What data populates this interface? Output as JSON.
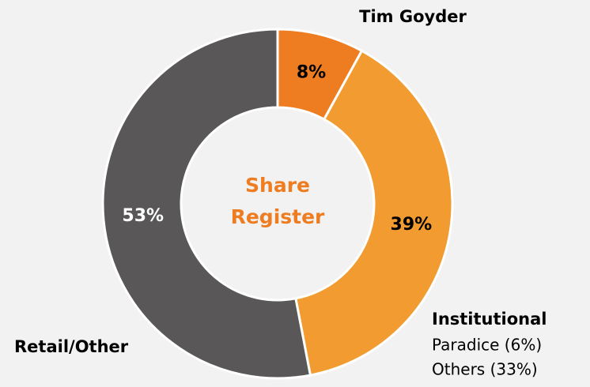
{
  "chart_data": {
    "type": "donut",
    "categories": [
      "Tim Goyder",
      "Institutional",
      "Retail/Other"
    ],
    "values": [
      8,
      39,
      53
    ],
    "value_labels": [
      "8%",
      "39%",
      "53%"
    ],
    "colors": [
      "#ee7d22",
      "#f29b30",
      "#595757"
    ],
    "label_colors": [
      "#000000",
      "#000000",
      "#ffffff"
    ],
    "center_text": [
      "Share",
      "Register"
    ],
    "annotations": [
      "Paradice (6%)",
      "Others (33%)"
    ]
  }
}
